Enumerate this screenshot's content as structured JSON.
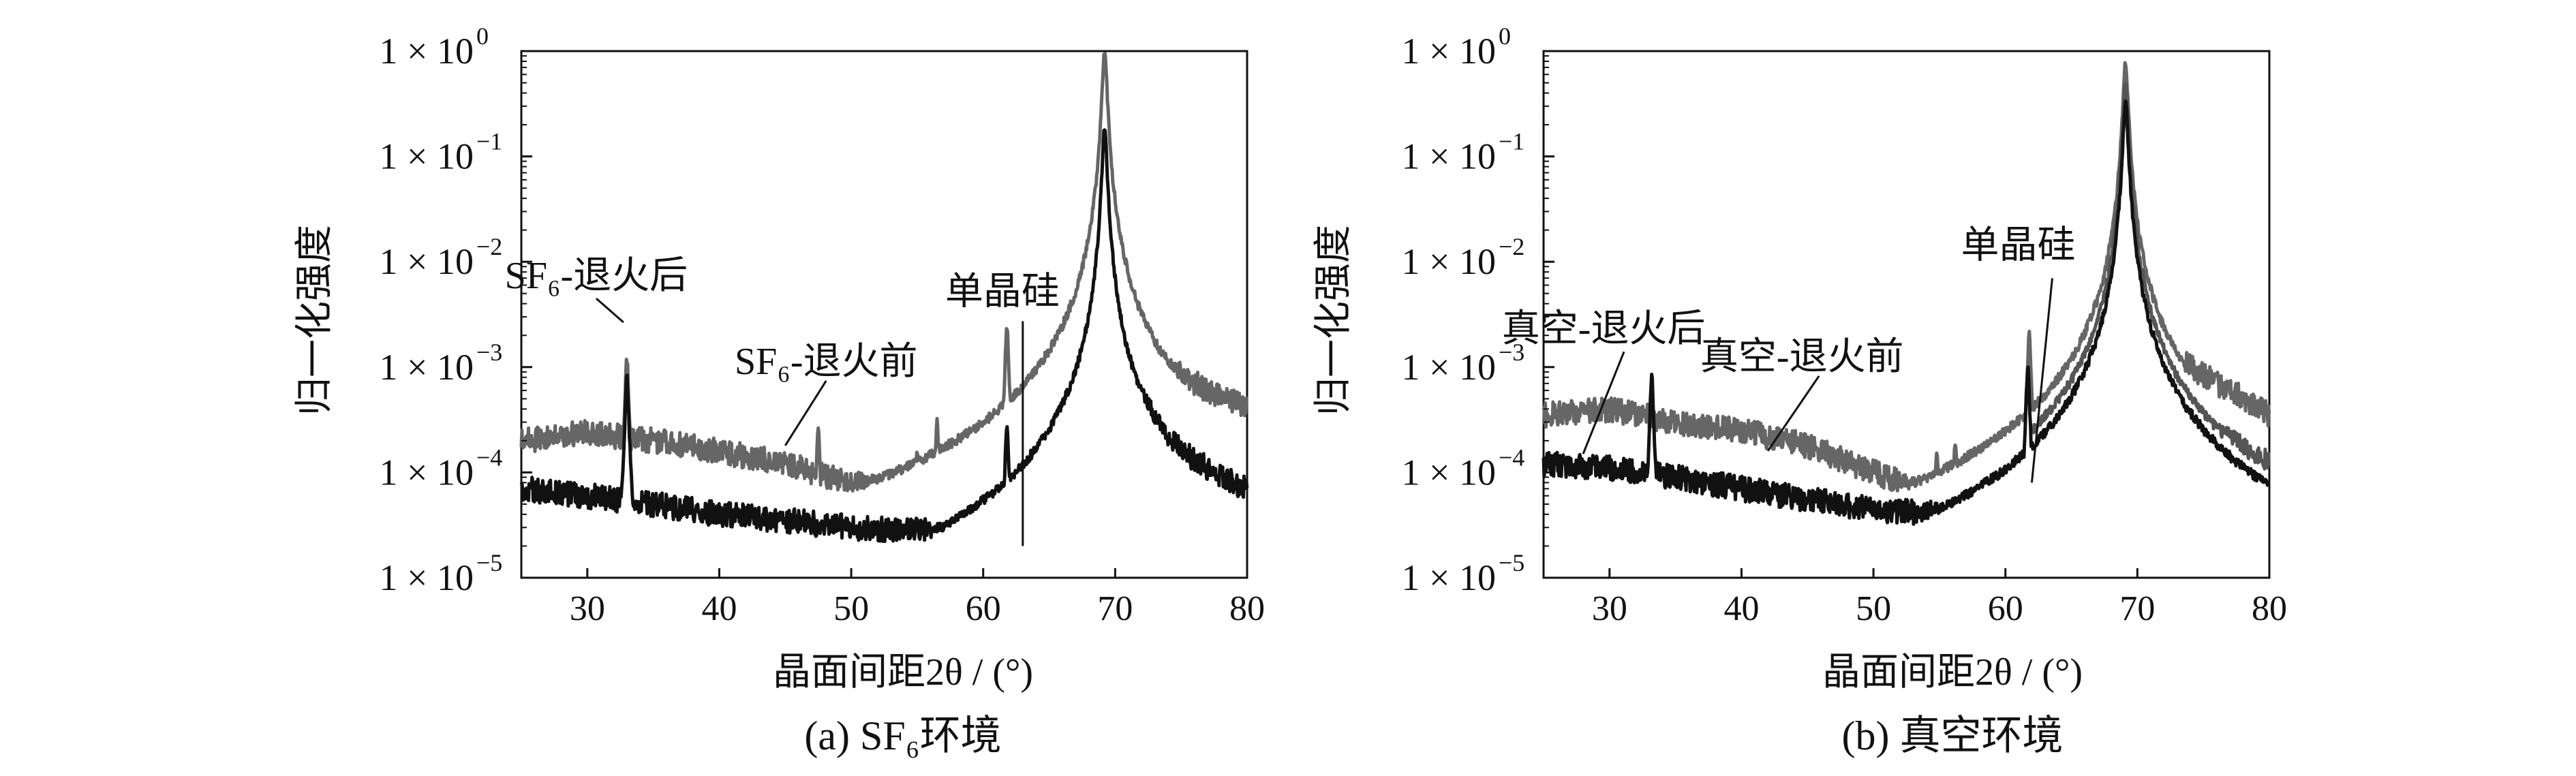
{
  "figure": {
    "xlabel": "晶面间距2θ / (°)",
    "ylabel": "归一化强度",
    "colors": {
      "before": "#666666",
      "after": "#111111",
      "axis": "#111111"
    }
  },
  "chart_data": [
    {
      "type": "line",
      "caption": "(a) SF₆环境",
      "xlabel": "晶面间距2θ / (°)",
      "ylabel": "归一化强度",
      "xlim": [
        25,
        80
      ],
      "ylim": [
        1e-05,
        1
      ],
      "yscale": "log",
      "xticks": [
        30,
        40,
        50,
        60,
        70,
        80
      ],
      "yticks": [
        {
          "value": 1.0,
          "label": "1 × 10",
          "exp": "0"
        },
        {
          "value": 0.1,
          "label": "1 × 10",
          "exp": "−1"
        },
        {
          "value": 0.01,
          "label": "1 × 10",
          "exp": "−2"
        },
        {
          "value": 0.001,
          "label": "1 × 10",
          "exp": "−3"
        },
        {
          "value": 0.0001,
          "label": "1 × 10",
          "exp": "−4"
        },
        {
          "value": 1e-05,
          "label": "1 × 10",
          "exp": "−5"
        }
      ],
      "annotations": [
        {
          "text": "SF₆-退火后",
          "series": "after",
          "x": 33,
          "y": 0.0006
        },
        {
          "text": "SF₆-退火前",
          "series": "before",
          "x": 45,
          "y": 0.00018
        },
        {
          "text": "单晶硅",
          "x": 63,
          "y": 2e-05
        }
      ],
      "series": [
        {
          "key": "before",
          "color": "#666666",
          "baseline": [
            [
              25,
              0.0002
            ],
            [
              30,
              0.00024
            ],
            [
              35,
              0.0002
            ],
            [
              40,
              0.00016
            ],
            [
              45,
              0.00012
            ],
            [
              50,
              8e-05
            ],
            [
              55,
              6e-05
            ],
            [
              60,
              4.5e-05
            ],
            [
              62,
              4e-05
            ],
            [
              64,
              4.5e-05
            ],
            [
              66,
              7e-05
            ],
            [
              66.5,
              0.00015
            ],
            [
              67,
              0.0006
            ],
            [
              68,
              0.0009
            ],
            [
              69,
              0.002
            ],
            [
              72,
              0.0015
            ],
            [
              74,
              0.001
            ],
            [
              77,
              0.0006
            ],
            [
              80,
              0.0004
            ]
          ],
          "peaks": [
            {
              "x": 33.0,
              "y": 0.0012,
              "w": 0.12
            },
            {
              "x": 47.5,
              "y": 0.00025,
              "w": 0.12
            },
            {
              "x": 55.0,
              "y": 0.00015,
              "w": 0.12
            },
            {
              "x": 56.5,
              "y": 0.0003,
              "w": 0.12
            },
            {
              "x": 61.8,
              "y": 0.0025,
              "w": 0.12
            },
            {
              "x": 69.2,
              "y": 1.0,
              "w": 0.16
            }
          ]
        },
        {
          "key": "after",
          "color": "#111111",
          "baseline": [
            [
              25,
              7e-05
            ],
            [
              30,
              6e-05
            ],
            [
              35,
              5e-05
            ],
            [
              40,
              4e-05
            ],
            [
              45,
              3.5e-05
            ],
            [
              50,
              3e-05
            ],
            [
              55,
              2.8e-05
            ],
            [
              60,
              2.5e-05
            ],
            [
              63,
              2.2e-05
            ],
            [
              65,
              3e-05
            ],
            [
              66,
              5e-05
            ],
            [
              66.6,
              0.00012
            ],
            [
              67,
              0.00015
            ],
            [
              68,
              0.00025
            ],
            [
              69,
              0.0015
            ],
            [
              72,
              0.0005
            ],
            [
              74,
              0.0002
            ],
            [
              77,
              0.00011
            ],
            [
              80,
              7e-05
            ]
          ],
          "peaks": [
            {
              "x": 33.0,
              "y": 0.0008,
              "w": 0.12
            },
            {
              "x": 61.8,
              "y": 0.0003,
              "w": 0.12
            },
            {
              "x": 69.2,
              "y": 0.18,
              "w": 0.16
            }
          ]
        }
      ]
    },
    {
      "type": "line",
      "caption": "(b) 真空环境",
      "xlabel": "晶面间距2θ / (°)",
      "ylabel": "归一化强度",
      "xlim": [
        25,
        80
      ],
      "ylim": [
        1e-05,
        1
      ],
      "yscale": "log",
      "xticks": [
        30,
        40,
        50,
        60,
        70,
        80
      ],
      "yticks": [
        {
          "value": 1.0,
          "label": "1 × 10",
          "exp": "0"
        },
        {
          "value": 0.1,
          "label": "1 × 10",
          "exp": "−1"
        },
        {
          "value": 0.01,
          "label": "1 × 10",
          "exp": "−2"
        },
        {
          "value": 0.001,
          "label": "1 × 10",
          "exp": "−3"
        },
        {
          "value": 0.0001,
          "label": "1 × 10",
          "exp": "−4"
        },
        {
          "value": 1e-05,
          "label": "1 × 10",
          "exp": "−5"
        }
      ],
      "annotations": [
        {
          "text": "真空-退火后",
          "series": "after",
          "x": 28,
          "y": 0.00015
        },
        {
          "text": "真空-退火前",
          "series": "before",
          "x": 42,
          "y": 0.00016
        },
        {
          "text": "单晶硅",
          "x": 62,
          "y": 8e-05
        }
      ],
      "series": [
        {
          "key": "before",
          "color": "#666666",
          "baseline": [
            [
              25,
              0.00035
            ],
            [
              30,
              0.0004
            ],
            [
              35,
              0.0003
            ],
            [
              40,
              0.00025
            ],
            [
              45,
              0.00018
            ],
            [
              50,
              0.0001
            ],
            [
              55,
              6e-05
            ],
            [
              60,
              5e-05
            ],
            [
              62,
              5e-05
            ],
            [
              64,
              5e-05
            ],
            [
              66,
              8e-05
            ],
            [
              66.4,
              0.0004
            ],
            [
              67,
              0.0008
            ],
            [
              68,
              0.0015
            ],
            [
              69,
              0.003
            ],
            [
              72,
              0.0015
            ],
            [
              74,
              0.001
            ],
            [
              77,
              0.0006
            ],
            [
              80,
              0.00035
            ]
          ],
          "peaks": [
            {
              "x": 28.2,
              "y": 0.00025,
              "w": 0.12
            },
            {
              "x": 47.5,
              "y": 0.00017,
              "w": 0.12
            },
            {
              "x": 54.8,
              "y": 0.00015,
              "w": 0.12
            },
            {
              "x": 56.2,
              "y": 0.0002,
              "w": 0.12
            },
            {
              "x": 61.8,
              "y": 0.002,
              "w": 0.12
            },
            {
              "x": 69.1,
              "y": 0.8,
              "w": 0.16
            }
          ]
        },
        {
          "key": "mid",
          "color": "#555555",
          "baseline": [
            [
              62,
              4e-05
            ],
            [
              64,
              4.5e-05
            ],
            [
              66,
              6e-05
            ],
            [
              66.4,
              0.0002
            ],
            [
              67,
              0.0003
            ],
            [
              68,
              0.0006
            ],
            [
              69,
              0.002
            ],
            [
              72,
              0.0006
            ],
            [
              74,
              0.00035
            ],
            [
              77,
              0.0002
            ],
            [
              80,
              0.00012
            ]
          ],
          "peaks": [
            {
              "x": 69.1,
              "y": 0.5,
              "w": 0.16
            }
          ]
        },
        {
          "key": "after",
          "color": "#111111",
          "baseline": [
            [
              25,
              0.00012
            ],
            [
              30,
              0.00011
            ],
            [
              35,
              9e-05
            ],
            [
              40,
              7e-05
            ],
            [
              45,
              5.5e-05
            ],
            [
              50,
              4.5e-05
            ],
            [
              55,
              4e-05
            ],
            [
              60,
              3.5e-05
            ],
            [
              61,
              3.2e-05
            ],
            [
              63,
              3e-05
            ],
            [
              65,
              3.5e-05
            ],
            [
              66,
              5e-05
            ],
            [
              66.4,
              0.00012
            ],
            [
              67,
              0.0002
            ],
            [
              68,
              0.0004
            ],
            [
              69,
              0.0015
            ],
            [
              72,
              0.00035
            ],
            [
              74,
              0.0002
            ],
            [
              77,
              0.0001
            ],
            [
              80,
              6.5e-05
            ]
          ],
          "peaks": [
            {
              "x": 33.2,
              "y": 0.0008,
              "w": 0.12
            },
            {
              "x": 61.7,
              "y": 0.001,
              "w": 0.12
            },
            {
              "x": 69.1,
              "y": 0.35,
              "w": 0.16
            }
          ]
        }
      ]
    }
  ]
}
